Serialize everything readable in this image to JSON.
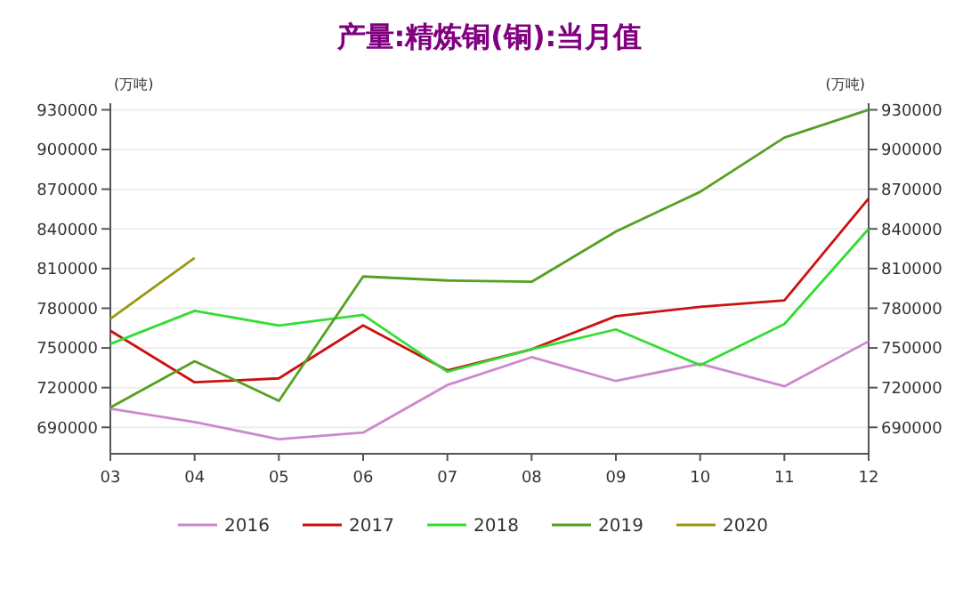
{
  "chart_data": {
    "type": "line",
    "title": "产量:精炼铜(铜):当月值",
    "ylabel": "(万吨)",
    "y2label": "(万吨)",
    "categories": [
      "03",
      "04",
      "05",
      "06",
      "07",
      "08",
      "09",
      "10",
      "11",
      "12"
    ],
    "series": [
      {
        "name": "2016",
        "color": "#cc88cc",
        "values": [
          704000,
          694000,
          681000,
          686000,
          722000,
          743000,
          725000,
          738000,
          721000,
          755000
        ]
      },
      {
        "name": "2017",
        "color": "#cc1111",
        "values": [
          763000,
          724000,
          727000,
          767000,
          733000,
          749000,
          774000,
          781000,
          786000,
          863000
        ]
      },
      {
        "name": "2018",
        "color": "#33dd33",
        "values": [
          753000,
          778000,
          767000,
          775000,
          732000,
          749000,
          764000,
          737000,
          768000,
          840000
        ]
      },
      {
        "name": "2019",
        "color": "#55a022",
        "values": [
          705000,
          740000,
          710000,
          804000,
          801000,
          800000,
          838000,
          868000,
          909000,
          930000
        ]
      },
      {
        "name": "2020",
        "color": "#999911",
        "values": [
          772000,
          818000,
          null,
          null,
          null,
          null,
          null,
          null,
          null,
          null
        ]
      }
    ],
    "ylim": [
      670000,
      935000
    ],
    "yticks": [
      690000,
      720000,
      750000,
      780000,
      810000,
      840000,
      870000,
      900000,
      930000
    ],
    "y2lim": [
      670000,
      935000
    ],
    "y2ticks": [
      690000,
      720000,
      750000,
      780000,
      810000,
      840000,
      870000,
      900000,
      930000
    ],
    "grid": "y",
    "legend": "bottom",
    "line_style": "solid",
    "marker": "none"
  }
}
